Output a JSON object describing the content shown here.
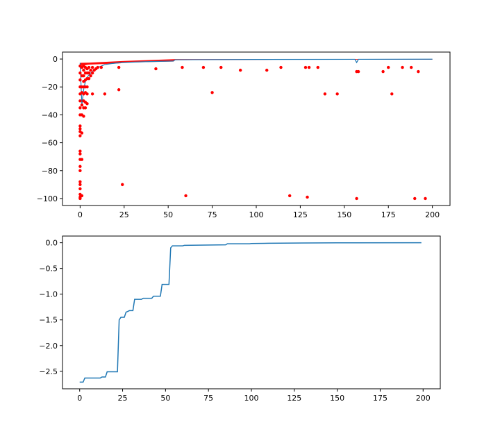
{
  "colors": {
    "points": "#ff0000",
    "points_small": "#ff8c00",
    "line": "#1f77b4",
    "axes": "#000000"
  },
  "chart_data": [
    {
      "type": "scatter",
      "title": "",
      "xlabel": "",
      "ylabel": "",
      "xlim": [
        -10,
        210
      ],
      "ylim": [
        -105,
        5
      ],
      "xticks": [
        0,
        25,
        50,
        75,
        100,
        125,
        150,
        175,
        200
      ],
      "yticks": [
        0,
        -20,
        -40,
        -60,
        -80,
        -100
      ],
      "grid": false,
      "series": [
        {
          "marker": "dot",
          "color": "#ff0000",
          "points": [
            [
              0,
              -100
            ],
            [
              0,
              -99
            ],
            [
              0,
              -97
            ],
            [
              0,
              -93
            ],
            [
              0,
              -90
            ],
            [
              0,
              -88
            ],
            [
              0,
              -80
            ],
            [
              0,
              -77
            ],
            [
              0,
              -72
            ],
            [
              0,
              -68
            ],
            [
              0,
              -66
            ],
            [
              0,
              -55
            ],
            [
              0,
              -52
            ],
            [
              0,
              -50
            ],
            [
              0,
              -48
            ],
            [
              0,
              -40
            ],
            [
              0,
              -35
            ],
            [
              0,
              -30
            ],
            [
              0,
              -25
            ],
            [
              0,
              -20
            ],
            [
              0,
              -15
            ],
            [
              0,
              -10
            ],
            [
              0,
              -5
            ],
            [
              1,
              -98
            ],
            [
              1,
              -72
            ],
            [
              1,
              -53
            ],
            [
              1,
              -40
            ],
            [
              1,
              -33
            ],
            [
              1,
              -24
            ],
            [
              1,
              -20
            ],
            [
              1,
              -12
            ],
            [
              1,
              -6
            ],
            [
              2,
              -41
            ],
            [
              2,
              -35
            ],
            [
              2,
              -30
            ],
            [
              2,
              -25
            ],
            [
              2,
              -20
            ],
            [
              2,
              -16
            ],
            [
              2,
              -12
            ],
            [
              2,
              -8
            ],
            [
              2,
              -5
            ],
            [
              3,
              -35
            ],
            [
              3,
              -31
            ],
            [
              3,
              -24
            ],
            [
              3,
              -20
            ],
            [
              3,
              -15
            ],
            [
              3,
              -10
            ],
            [
              3,
              -6
            ],
            [
              4,
              -32
            ],
            [
              4,
              -25
            ],
            [
              4,
              -20
            ],
            [
              4,
              -14
            ],
            [
              4,
              -10
            ],
            [
              4,
              -7
            ],
            [
              5,
              -14
            ],
            [
              5,
              -10
            ],
            [
              5,
              -6
            ],
            [
              6,
              -12
            ],
            [
              6,
              -8
            ],
            [
              7,
              -10
            ],
            [
              7,
              -6
            ],
            [
              7,
              -25
            ],
            [
              8,
              -8
            ],
            [
              9,
              -7
            ],
            [
              10,
              -6
            ],
            [
              12,
              -6
            ],
            [
              14,
              -25
            ],
            [
              22,
              -22
            ],
            [
              22,
              -6
            ],
            [
              24,
              -90
            ],
            [
              43,
              -7
            ],
            [
              58,
              -6
            ],
            [
              60,
              -98
            ],
            [
              70,
              -6
            ],
            [
              75,
              -24
            ],
            [
              80,
              -6
            ],
            [
              91,
              -8
            ],
            [
              106,
              -8
            ],
            [
              114,
              -6
            ],
            [
              119,
              -98
            ],
            [
              128,
              -6
            ],
            [
              129,
              -99
            ],
            [
              130,
              -6
            ],
            [
              135,
              -6
            ],
            [
              139,
              -25
            ],
            [
              146,
              -25
            ],
            [
              157,
              -100
            ],
            [
              157,
              -9
            ],
            [
              158,
              -9
            ],
            [
              172,
              -9
            ],
            [
              175,
              -6
            ],
            [
              177,
              -25
            ],
            [
              183,
              -6
            ],
            [
              188,
              -6
            ],
            [
              190,
              -100
            ],
            [
              192,
              -9
            ],
            [
              196,
              -100
            ]
          ]
        },
        {
          "marker": "band",
          "color": "#ff0000",
          "upper": [
            [
              0,
              -2.7
            ],
            [
              5,
              -2.6
            ],
            [
              23,
              -1.5
            ],
            [
              24,
              -1.4
            ],
            [
              53,
              -0.1
            ],
            [
              54,
              -0.07
            ],
            [
              85,
              -0.04
            ],
            [
              110,
              -0.02
            ],
            [
              200,
              0
            ]
          ],
          "lower": [
            [
              0,
              -5
            ],
            [
              5,
              -4
            ],
            [
              23,
              -3
            ],
            [
              24,
              -2.5
            ],
            [
              53,
              -1.8
            ],
            [
              54,
              -0.8
            ],
            [
              85,
              -0.6
            ],
            [
              110,
              -0.5
            ],
            [
              200,
              -0.4
            ]
          ]
        }
      ],
      "line": [
        [
          0,
          -2.7
        ],
        [
          1,
          -33
        ],
        [
          2,
          -22
        ],
        [
          3,
          -16
        ],
        [
          4,
          -13
        ],
        [
          6,
          -10
        ],
        [
          8,
          -8
        ],
        [
          10,
          -6
        ],
        [
          14,
          -4
        ],
        [
          18,
          -3.2
        ],
        [
          23,
          -2.6
        ],
        [
          30,
          -2.2
        ],
        [
          40,
          -1.8
        ],
        [
          53,
          -1.4
        ],
        [
          54,
          -0.5
        ],
        [
          100,
          -0.3
        ],
        [
          156,
          -0.2
        ],
        [
          157,
          -2.5
        ],
        [
          158,
          -0.2
        ],
        [
          200,
          -0.1
        ]
      ]
    },
    {
      "type": "line",
      "title": "",
      "xlabel": "",
      "ylabel": "",
      "xlim": [
        -10,
        210
      ],
      "ylim": [
        -2.84,
        0.13
      ],
      "xticks": [
        0,
        25,
        50,
        75,
        100,
        125,
        150,
        175,
        200
      ],
      "yticks": [
        0.0,
        -0.5,
        -1.0,
        -1.5,
        -2.0,
        -2.5
      ],
      "ytick_labels": [
        "0.0",
        "−0.5",
        "−1.0",
        "−1.5",
        "−2.0",
        "−2.5"
      ],
      "grid": false,
      "series": [
        {
          "color": "#1f77b4",
          "points": [
            [
              0,
              -2.71
            ],
            [
              2,
              -2.71
            ],
            [
              3,
              -2.63
            ],
            [
              12,
              -2.63
            ],
            [
              13,
              -2.61
            ],
            [
              15,
              -2.61
            ],
            [
              16,
              -2.51
            ],
            [
              22,
              -2.51
            ],
            [
              23,
              -1.5
            ],
            [
              24,
              -1.45
            ],
            [
              26,
              -1.45
            ],
            [
              27,
              -1.35
            ],
            [
              29,
              -1.32
            ],
            [
              31,
              -1.32
            ],
            [
              32,
              -1.1
            ],
            [
              36,
              -1.1
            ],
            [
              37,
              -1.08
            ],
            [
              42,
              -1.08
            ],
            [
              43,
              -1.04
            ],
            [
              47,
              -1.04
            ],
            [
              48,
              -0.81
            ],
            [
              52,
              -0.81
            ],
            [
              53,
              -0.1
            ],
            [
              54,
              -0.06
            ],
            [
              60,
              -0.06
            ],
            [
              61,
              -0.05
            ],
            [
              85,
              -0.04
            ],
            [
              86,
              -0.02
            ],
            [
              99,
              -0.02
            ],
            [
              100,
              -0.015
            ],
            [
              110,
              -0.01
            ],
            [
              130,
              -0.005
            ],
            [
              150,
              -0.002
            ],
            [
              199,
              0.0
            ]
          ]
        }
      ]
    }
  ]
}
